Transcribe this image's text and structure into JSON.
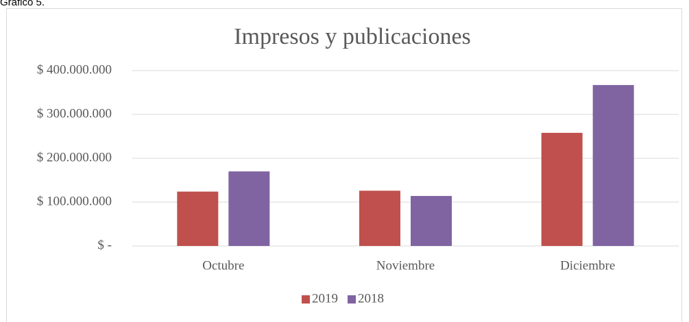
{
  "caption": "Gráfico 5.",
  "chart_data": {
    "type": "bar",
    "title": "Impresos y publicaciones",
    "categories": [
      "Octubre",
      "Noviembre",
      "Diciembre"
    ],
    "series": [
      {
        "name": "2019",
        "color": "#c0504d",
        "values": [
          124000000,
          126000000,
          258000000
        ]
      },
      {
        "name": "2018",
        "color": "#8064a2",
        "values": [
          170000000,
          114000000,
          367000000
        ]
      }
    ],
    "ylim": [
      0,
      400000000
    ],
    "yticks": [
      {
        "value": 0,
        "label": "$ -"
      },
      {
        "value": 100000000,
        "label": "$ 100.000.000"
      },
      {
        "value": 200000000,
        "label": "$ 200.000.000"
      },
      {
        "value": 300000000,
        "label": "$ 300.000.000"
      },
      {
        "value": 400000000,
        "label": "$ 400.000.000"
      }
    ],
    "grid": true,
    "legend": "bottom"
  }
}
